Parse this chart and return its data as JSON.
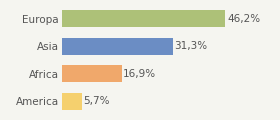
{
  "categories": [
    "America",
    "Africa",
    "Asia",
    "Europa"
  ],
  "values": [
    5.7,
    16.9,
    31.3,
    46.2
  ],
  "labels": [
    "5,7%",
    "16,9%",
    "31,3%",
    "46,2%"
  ],
  "bar_colors": [
    "#f5d06e",
    "#f0a86b",
    "#6b8dc4",
    "#adc178"
  ],
  "background_color": "#f5f5f0",
  "xlim": [
    0,
    60
  ],
  "bar_height": 0.62,
  "label_fontsize": 7.5,
  "category_fontsize": 7.5,
  "figsize": [
    2.8,
    1.2
  ],
  "dpi": 100
}
